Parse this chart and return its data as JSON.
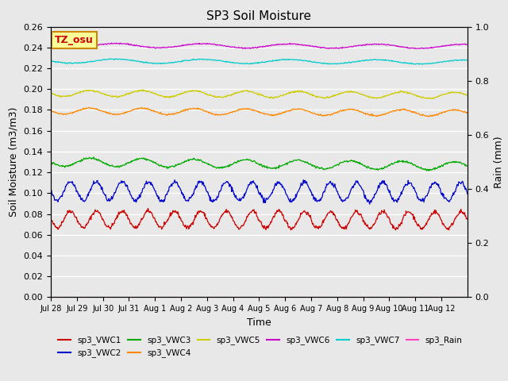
{
  "title": "SP3 Soil Moisture",
  "xlabel": "Time",
  "ylabel_left": "Soil Moisture (m3/m3)",
  "ylabel_right": "Rain (mm)",
  "ylim_left": [
    0.0,
    0.26
  ],
  "ylim_right": [
    0.0,
    1.0
  ],
  "background_color": "#e8e8e8",
  "series_names": [
    "sp3_VWC1",
    "sp3_VWC2",
    "sp3_VWC3",
    "sp3_VWC4",
    "sp3_VWC5",
    "sp3_VWC6",
    "sp3_VWC7",
    "sp3_Rain"
  ],
  "series_colors": [
    "#cc0000",
    "#0000cc",
    "#00aa00",
    "#ff8800",
    "#cccc00",
    "#cc00cc",
    "#00cccc",
    "#ff44bb"
  ],
  "series_base": [
    0.075,
    0.102,
    0.13,
    0.179,
    0.196,
    0.242,
    0.227,
    0.0
  ],
  "series_amp": [
    0.008,
    0.009,
    0.004,
    0.003,
    0.003,
    0.002,
    0.002,
    0.0
  ],
  "series_freq": [
    1.0,
    1.0,
    0.5,
    0.5,
    0.5,
    0.3,
    0.3,
    0.0
  ],
  "series_trend": [
    -0.001,
    -0.001,
    -0.004,
    -0.002,
    -0.002,
    -0.001,
    -0.001,
    0.0
  ],
  "series_rain": [
    false,
    false,
    false,
    false,
    false,
    false,
    false,
    true
  ],
  "legend_label": "TZ_osu",
  "legend_bg": "#ffff99",
  "legend_border": "#cc8800",
  "tick_labels": [
    "Jul 28",
    "Jul 29",
    "Jul 30",
    "Jul 31",
    "Aug 1",
    "Aug 2",
    "Aug 3",
    "Aug 4",
    "Aug 5",
    "Aug 6",
    "Aug 7",
    "Aug 8",
    "Aug 9",
    "Aug 10",
    "Aug 11",
    "Aug 12"
  ],
  "n_days": 16,
  "points_per_day": 48
}
